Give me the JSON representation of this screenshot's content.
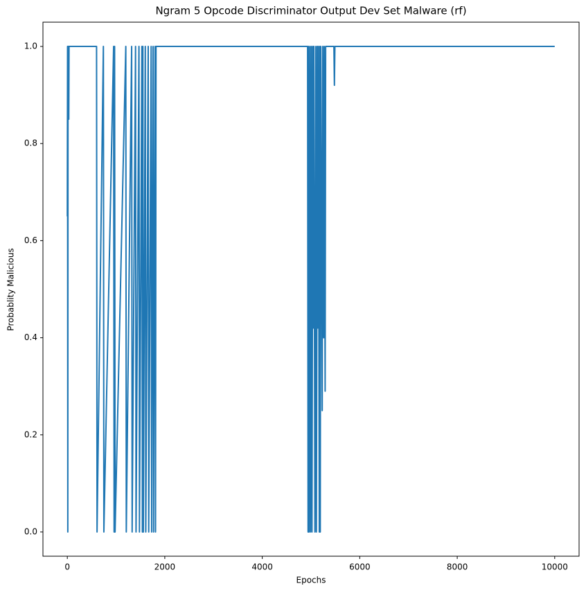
{
  "chart_data": {
    "type": "line",
    "title": "Ngram 5 Opcode Discriminator Output Dev Set Malware (rf)",
    "x_label": "Epochs",
    "y_label": "Probablity Malicious",
    "color": "#1f77b4",
    "x": [
      0,
      5,
      10,
      15,
      20,
      25,
      30,
      35,
      600,
      610,
      740,
      750,
      950,
      960,
      970,
      980,
      1200,
      1210,
      1320,
      1330,
      1400,
      1410,
      1470,
      1480,
      1530,
      1540,
      1550,
      1560,
      1600,
      1610,
      1660,
      1670,
      1720,
      1730,
      1760,
      1770,
      1800,
      1810,
      1820,
      4930,
      4940,
      4950,
      4960,
      4980,
      4990,
      5010,
      5020,
      5040,
      5050,
      5060,
      5080,
      5100,
      5110,
      5130,
      5140,
      5150,
      5170,
      5180,
      5190,
      5200,
      5230,
      5240,
      5260,
      5270,
      5290,
      5300,
      5470,
      5480,
      5490,
      10000
    ],
    "values": [
      0.65,
      1,
      0,
      1,
      0.85,
      1,
      0.85,
      1,
      1,
      0,
      1,
      0,
      1,
      0,
      1,
      0,
      1,
      0,
      1,
      0,
      1,
      0,
      1,
      0,
      1,
      0,
      1,
      0,
      1,
      0,
      1,
      0,
      1,
      0,
      1,
      0,
      1,
      0,
      1,
      1,
      0,
      1,
      0,
      1,
      0,
      1,
      0,
      1,
      0.42,
      1,
      0,
      1,
      0,
      1,
      0.42,
      1,
      0,
      1,
      0,
      1,
      0.25,
      1,
      0.4,
      1,
      0.29,
      1,
      1,
      0.92,
      1,
      1
    ],
    "xlim": [
      -500,
      10500
    ],
    "ylim": [
      -0.05,
      1.05
    ],
    "xticks": [
      0,
      2000,
      4000,
      6000,
      8000,
      10000
    ],
    "yticks": [
      {
        "value": 0,
        "label": "0.0"
      },
      0.2,
      0.4,
      0.6,
      0.8,
      {
        "value": 1,
        "label": "1.0"
      }
    ]
  }
}
